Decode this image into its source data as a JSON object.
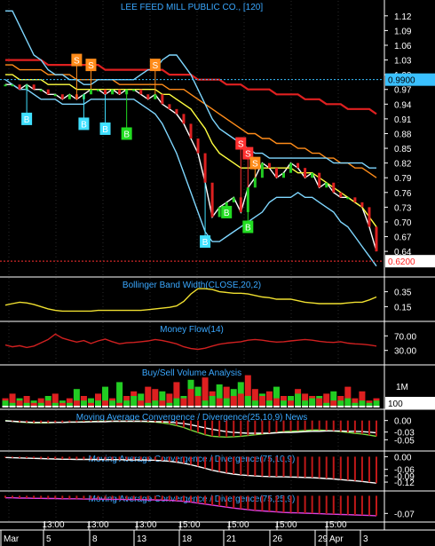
{
  "chart_data": [
    {
      "type": "line",
      "title": "LEE FEED MILL PUBLIC CO., [120]",
      "ylim": [
        0.595,
        1.145
      ],
      "y_ticks": [
        0.64,
        0.67,
        0.7,
        0.73,
        0.76,
        0.79,
        0.82,
        0.85,
        0.88,
        0.91,
        0.94,
        0.97,
        1.0,
        1.03,
        1.06,
        1.09,
        1.12
      ],
      "reference_lines": [
        {
          "value": 0.99,
          "label": "0.9900",
          "color": "#3ac0ff"
        },
        {
          "value": 0.62,
          "label": "0.6200",
          "color": "#ff3030"
        }
      ],
      "series": [
        {
          "values": [
            0.98,
            0.98,
            0.97,
            0.98,
            0.97,
            0.97,
            0.96,
            0.96,
            0.95,
            0.96,
            0.95,
            0.96,
            0.97,
            0.97,
            0.96,
            0.97,
            0.96,
            0.97,
            0.97,
            0.96,
            0.95,
            0.96,
            0.94,
            0.93,
            0.92,
            0.9,
            0.87,
            0.84,
            0.78,
            0.71,
            0.73,
            0.74,
            0.75,
            0.72,
            0.77,
            0.79,
            0.82,
            0.81,
            0.79,
            0.8,
            0.82,
            0.81,
            0.79,
            0.8,
            0.77,
            0.78,
            0.76,
            0.75,
            0.75,
            0.74,
            0.73,
            0.69,
            0.64
          ],
          "color": "#ffffff"
        },
        {
          "values": [
            1.0,
            1.0,
            0.99,
            0.99,
            0.99,
            0.99,
            0.98,
            0.98,
            0.98,
            0.98,
            0.97,
            0.97,
            0.97,
            0.97,
            0.97,
            0.97,
            0.97,
            0.97,
            0.97,
            0.97,
            0.97,
            0.97,
            0.96,
            0.96,
            0.95,
            0.94,
            0.93,
            0.91,
            0.89,
            0.86,
            0.84,
            0.83,
            0.82,
            0.81,
            0.81,
            0.81,
            0.81,
            0.81,
            0.81,
            0.81,
            0.81,
            0.8,
            0.8,
            0.8,
            0.79,
            0.78,
            0.77,
            0.76,
            0.75,
            0.74,
            0.73,
            0.71,
            0.69
          ],
          "color": "#ffff40"
        },
        {
          "values": [
            1.02,
            1.02,
            1.01,
            1.01,
            1.01,
            1.01,
            1.0,
            1.0,
            1.0,
            1.0,
            0.99,
            0.99,
            0.99,
            0.99,
            0.99,
            0.99,
            0.98,
            0.98,
            0.98,
            0.98,
            0.98,
            0.98,
            0.98,
            0.97,
            0.97,
            0.97,
            0.96,
            0.95,
            0.94,
            0.93,
            0.92,
            0.91,
            0.9,
            0.89,
            0.88,
            0.88,
            0.87,
            0.87,
            0.86,
            0.86,
            0.86,
            0.85,
            0.85,
            0.84,
            0.84,
            0.83,
            0.83,
            0.82,
            0.82,
            0.81,
            0.81,
            0.8,
            0.79
          ],
          "color": "#ff8c1a"
        },
        {
          "values": [
            1.03,
            1.03,
            1.03,
            1.03,
            1.03,
            1.03,
            1.02,
            1.02,
            1.02,
            1.02,
            1.02,
            1.02,
            1.02,
            1.02,
            1.01,
            1.01,
            1.01,
            1.01,
            1.01,
            1.01,
            1.01,
            1.01,
            1.01,
            1.0,
            1.0,
            1.0,
            1.0,
            0.99,
            0.99,
            0.99,
            0.99,
            0.98,
            0.98,
            0.98,
            0.97,
            0.97,
            0.97,
            0.97,
            0.96,
            0.96,
            0.96,
            0.96,
            0.95,
            0.95,
            0.95,
            0.94,
            0.94,
            0.94,
            0.93,
            0.93,
            0.93,
            0.93,
            0.92
          ],
          "color": "#e02020"
        },
        {
          "values": [
            0.99,
            0.98,
            0.97,
            0.97,
            0.96,
            0.95,
            0.95,
            0.95,
            0.94,
            0.94,
            0.94,
            0.94,
            0.95,
            0.95,
            0.95,
            0.95,
            0.95,
            0.95,
            0.95,
            0.94,
            0.93,
            0.92,
            0.9,
            0.87,
            0.84,
            0.8,
            0.76,
            0.72,
            0.68,
            0.66,
            0.66,
            0.67,
            0.68,
            0.69,
            0.7,
            0.71,
            0.72,
            0.74,
            0.75,
            0.75,
            0.75,
            0.76,
            0.75,
            0.75,
            0.74,
            0.73,
            0.72,
            0.7,
            0.69,
            0.67,
            0.65,
            0.63,
            0.61
          ],
          "color": "#7fd7ff"
        },
        {
          "values": [
            1.13,
            1.13,
            1.1,
            1.07,
            1.04,
            1.03,
            1.01,
            1.0,
            1.0,
            0.99,
            0.99,
            0.98,
            0.98,
            0.99,
            0.99,
            0.99,
            0.99,
            0.99,
            0.99,
            1.0,
            1.01,
            1.01,
            1.03,
            1.04,
            1.04,
            1.02,
            1.0,
            0.97,
            0.94,
            0.91,
            0.89,
            0.88,
            0.87,
            0.86,
            0.85,
            0.84,
            0.84,
            0.83,
            0.83,
            0.83,
            0.83,
            0.83,
            0.83,
            0.83,
            0.83,
            0.83,
            0.82,
            0.82,
            0.82,
            0.82,
            0.82,
            0.81,
            0.81
          ],
          "color": "#7fd7ff"
        }
      ],
      "signals": [
        {
          "label": "B",
          "type": "buy",
          "bar": 3,
          "value": 0.91,
          "color": "#40e0ff"
        },
        {
          "label": "S",
          "type": "sell",
          "bar": 10,
          "value": 1.03,
          "color": "#ff8c1a"
        },
        {
          "label": "S",
          "type": "sell",
          "bar": 12,
          "value": 1.02,
          "color": "#ff8c1a"
        },
        {
          "label": "B",
          "type": "buy",
          "bar": 11,
          "value": 0.9,
          "color": "#40e0ff"
        },
        {
          "label": "B",
          "type": "buy",
          "bar": 14,
          "value": 0.89,
          "color": "#40e0ff"
        },
        {
          "label": "B",
          "type": "buy",
          "bar": 17,
          "value": 0.88,
          "color": "#22dd22"
        },
        {
          "label": "S",
          "type": "sell",
          "bar": 21,
          "value": 1.02,
          "color": "#ff8c1a"
        },
        {
          "label": "B",
          "type": "buy",
          "bar": 28,
          "value": 0.66,
          "color": "#40e0ff"
        },
        {
          "label": "B",
          "type": "buy",
          "bar": 31,
          "value": 0.72,
          "color": "#22dd22"
        },
        {
          "label": "S",
          "type": "sell",
          "bar": 33,
          "value": 0.86,
          "color": "#ff3030"
        },
        {
          "label": "S",
          "type": "sell",
          "bar": 34,
          "value": 0.84,
          "color": "#ff3030"
        },
        {
          "label": "B",
          "type": "buy",
          "bar": 34,
          "value": 0.69,
          "color": "#22dd22"
        },
        {
          "label": "S",
          "type": "sell",
          "bar": 35,
          "value": 0.82,
          "color": "#ff8c1a"
        }
      ]
    },
    {
      "type": "line",
      "title": "Bollinger Band Width(CLOSE,20,2)",
      "ylim": [
        0.0,
        0.5
      ],
      "y_ticks": [
        0.15,
        0.35
      ],
      "series": [
        {
          "values": [
            0.17,
            0.19,
            0.21,
            0.2,
            0.18,
            0.15,
            0.12,
            0.1,
            0.09,
            0.09,
            0.09,
            0.09,
            0.09,
            0.1,
            0.1,
            0.1,
            0.1,
            0.1,
            0.1,
            0.1,
            0.11,
            0.12,
            0.13,
            0.14,
            0.16,
            0.22,
            0.32,
            0.39,
            0.39,
            0.38,
            0.35,
            0.34,
            0.33,
            0.33,
            0.32,
            0.3,
            0.28,
            0.27,
            0.25,
            0.25,
            0.25,
            0.23,
            0.21,
            0.2,
            0.19,
            0.19,
            0.19,
            0.19,
            0.2,
            0.21,
            0.21,
            0.24,
            0.28
          ],
          "color": "#f0e030"
        }
      ]
    },
    {
      "type": "line",
      "title": "Money Flow(14)",
      "ylim": [
        0,
        100
      ],
      "y_ticks": [
        30,
        70
      ],
      "series": [
        {
          "values": [
            45,
            40,
            43,
            38,
            42,
            51,
            60,
            75,
            64,
            58,
            53,
            57,
            49,
            56,
            61,
            54,
            48,
            51,
            52,
            54,
            56,
            60,
            57,
            53,
            48,
            40,
            35,
            33,
            36,
            42,
            47,
            50,
            52,
            54,
            58,
            60,
            58,
            55,
            53,
            54,
            56,
            58,
            60,
            58,
            55,
            53,
            52,
            54,
            50,
            48,
            47,
            45,
            42
          ],
          "color": "#d02020"
        }
      ]
    },
    {
      "type": "bar",
      "title": "Buy/Sell Volume Analysis",
      "y_ticks_labels": [
        "1M",
        "100"
      ],
      "y_ticks_values": [
        1000000,
        100
      ],
      "series": [
        {
          "name": "buy",
          "color": "#22cc22",
          "values": [
            0.3,
            0.2,
            0.4,
            0.2,
            0.3,
            0.2,
            0.5,
            0.2,
            0.3,
            0.2,
            0.8,
            0.3,
            0.4,
            0.3,
            0.9,
            0.3,
            1.1,
            0.3,
            0.5,
            0.6,
            0.2,
            0.3,
            0.7,
            0.2,
            0.4,
            0.5,
            1.2,
            0.9,
            0.3,
            0.5,
            1.0,
            0.4,
            0.8,
            1.1,
            0.5,
            0.3,
            0.6,
            0.3,
            0.9,
            0.3,
            0.5,
            0.6,
            0.3,
            0.4,
            0.5,
            0.2,
            0.7,
            0.3,
            0.4,
            0.2,
            0.3,
            0.2,
            0.3
          ]
        },
        {
          "name": "sell",
          "color": "#dd2020",
          "values": [
            0.4,
            0.6,
            0.3,
            0.5,
            0.2,
            0.4,
            0.3,
            0.6,
            0.2,
            0.4,
            0.3,
            0.5,
            0.2,
            0.6,
            0.3,
            0.4,
            0.2,
            0.5,
            0.7,
            0.3,
            0.9,
            0.8,
            0.3,
            0.6,
            1.1,
            0.4,
            0.8,
            0.5,
            1.3,
            0.7,
            0.4,
            0.9,
            0.5,
            0.6,
            1.4,
            0.8,
            0.5,
            0.7,
            0.4,
            0.5,
            0.3,
            0.8,
            0.6,
            0.5,
            0.4,
            0.6,
            0.3,
            0.5,
            0.9,
            0.4,
            0.7,
            0.3,
            0.4
          ]
        }
      ]
    },
    {
      "type": "line",
      "title": "Moving Average Convergence / Divergence(25,10,9) News",
      "ylim": [
        -0.07,
        0.02
      ],
      "y_ticks": [
        -0.05,
        -0.03,
        0.0
      ],
      "series": [
        {
          "values": [
            0.0,
            -0.002,
            -0.004,
            -0.005,
            -0.006,
            -0.006,
            -0.006,
            -0.005,
            -0.005,
            -0.004,
            -0.004,
            -0.003,
            -0.003,
            -0.002,
            -0.002,
            -0.002,
            -0.002,
            -0.002,
            -0.002,
            -0.002,
            -0.003,
            -0.004,
            -0.006,
            -0.009,
            -0.013,
            -0.018,
            -0.025,
            -0.031,
            -0.037,
            -0.041,
            -0.042,
            -0.043,
            -0.042,
            -0.041,
            -0.039,
            -0.037,
            -0.035,
            -0.033,
            -0.031,
            -0.029,
            -0.028,
            -0.027,
            -0.026,
            -0.025,
            -0.025,
            -0.026,
            -0.027,
            -0.029,
            -0.031,
            -0.033,
            -0.035,
            -0.038,
            -0.041
          ],
          "color": "#7ce040"
        },
        {
          "values": [
            -0.001,
            -0.002,
            -0.003,
            -0.004,
            -0.005,
            -0.005,
            -0.005,
            -0.005,
            -0.005,
            -0.004,
            -0.004,
            -0.004,
            -0.003,
            -0.003,
            -0.003,
            -0.002,
            -0.002,
            -0.002,
            -0.002,
            -0.002,
            -0.002,
            -0.003,
            -0.003,
            -0.004,
            -0.006,
            -0.008,
            -0.011,
            -0.015,
            -0.019,
            -0.023,
            -0.026,
            -0.029,
            -0.031,
            -0.032,
            -0.033,
            -0.033,
            -0.033,
            -0.033,
            -0.032,
            -0.031,
            -0.031,
            -0.03,
            -0.029,
            -0.028,
            -0.028,
            -0.027,
            -0.027,
            -0.027,
            -0.028,
            -0.028,
            -0.029,
            -0.03,
            -0.032
          ],
          "color": "#ffffff"
        }
      ]
    },
    {
      "type": "line",
      "title": "Moving Average Convergence / Divergence(75,10,9)",
      "ylim": [
        -0.145,
        0.01
      ],
      "y_ticks": [
        -0.12,
        -0.09,
        -0.06,
        0.0
      ],
      "series": [
        {
          "values": [
            -0.004,
            -0.005,
            -0.006,
            -0.007,
            -0.008,
            -0.009,
            -0.01,
            -0.011,
            -0.012,
            -0.012,
            -0.013,
            -0.013,
            -0.013,
            -0.014,
            -0.014,
            -0.014,
            -0.014,
            -0.015,
            -0.015,
            -0.015,
            -0.016,
            -0.017,
            -0.019,
            -0.022,
            -0.026,
            -0.031,
            -0.038,
            -0.046,
            -0.055,
            -0.064,
            -0.071,
            -0.077,
            -0.082,
            -0.086,
            -0.089,
            -0.091,
            -0.093,
            -0.094,
            -0.095,
            -0.095,
            -0.096,
            -0.097,
            -0.098,
            -0.099,
            -0.101,
            -0.103,
            -0.105,
            -0.108,
            -0.111,
            -0.114,
            -0.117,
            -0.121,
            -0.125
          ],
          "color": "#ffffff"
        }
      ]
    },
    {
      "type": "line",
      "title": "Moving Average Convergence / Divergence(75,25,9)",
      "ylim": [
        -0.09,
        0.005
      ],
      "y_ticks": [
        -0.07
      ],
      "series": [
        {
          "values": [
            -0.008,
            -0.008,
            -0.009,
            -0.009,
            -0.01,
            -0.01,
            -0.011,
            -0.011,
            -0.012,
            -0.012,
            -0.012,
            -0.013,
            -0.013,
            -0.013,
            -0.014,
            -0.014,
            -0.014,
            -0.015,
            -0.015,
            -0.015,
            -0.016,
            -0.016,
            -0.017,
            -0.018,
            -0.02,
            -0.022,
            -0.025,
            -0.029,
            -0.033,
            -0.037,
            -0.041,
            -0.045,
            -0.049,
            -0.052,
            -0.055,
            -0.058,
            -0.06,
            -0.062,
            -0.064,
            -0.066,
            -0.067,
            -0.068,
            -0.069,
            -0.07,
            -0.071,
            -0.072,
            -0.073,
            -0.074,
            -0.075,
            -0.076,
            -0.077,
            -0.078,
            -0.079
          ],
          "color": "#e040e0"
        }
      ]
    }
  ],
  "x_axis": {
    "time_labels": [
      "13:00",
      "13:00",
      "13:00",
      "15:00",
      "15:00",
      "15:00",
      "15:00"
    ],
    "date_labels": [
      "Mar",
      "5",
      "8",
      "13",
      "18",
      "21",
      "26",
      "29",
      "Apr",
      "3"
    ]
  }
}
